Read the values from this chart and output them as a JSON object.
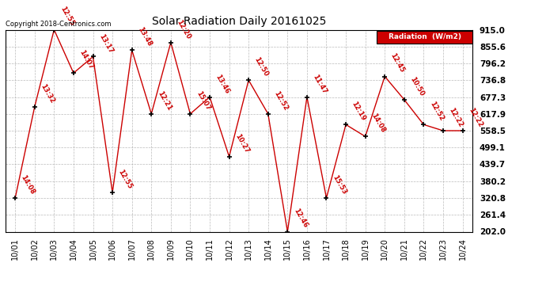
{
  "title": "Solar Radiation Daily 20161025",
  "copyright": "Copyright 2018-Centronics.com",
  "legend_label": "Radiation  (W/m2)",
  "x_labels": [
    "10/01",
    "10/02",
    "10/03",
    "10/04",
    "10/05",
    "10/06",
    "10/07",
    "10/08",
    "10/09",
    "10/10",
    "10/11",
    "10/12",
    "10/13",
    "10/14",
    "10/15",
    "10/16",
    "10/17",
    "10/18",
    "10/19",
    "10/20",
    "10/21",
    "10/22",
    "10/23",
    "10/24"
  ],
  "y_values": [
    320.8,
    643.0,
    915.0,
    762.0,
    820.0,
    340.0,
    843.0,
    617.9,
    870.0,
    617.9,
    677.3,
    467.0,
    736.8,
    617.9,
    202.0,
    677.3,
    320.8,
    580.0,
    538.0,
    750.0,
    668.0,
    580.0,
    558.5,
    558.5
  ],
  "time_labels": [
    "14:08",
    "13:32",
    "12:55",
    "14:07",
    "13:17",
    "12:55",
    "13:48",
    "12:21",
    "12:20",
    "15:07",
    "13:46",
    "10:27",
    "12:50",
    "12:52",
    "12:46",
    "11:47",
    "15:53",
    "12:19",
    "14:08",
    "12:45",
    "10:50",
    "12:52",
    "12:22",
    "12:22"
  ],
  "ylim": [
    202.0,
    915.0
  ],
  "y_ticks": [
    202.0,
    261.4,
    320.8,
    380.2,
    439.7,
    499.1,
    558.5,
    617.9,
    677.3,
    736.8,
    796.2,
    855.6,
    915.0
  ],
  "line_color": "#cc0000",
  "marker_color": "#000000",
  "bg_color": "#ffffff",
  "grid_color": "#aaaaaa",
  "label_color": "#cc0000",
  "title_color": "#000000",
  "legend_bg": "#cc0000",
  "legend_text_color": "#ffffff"
}
